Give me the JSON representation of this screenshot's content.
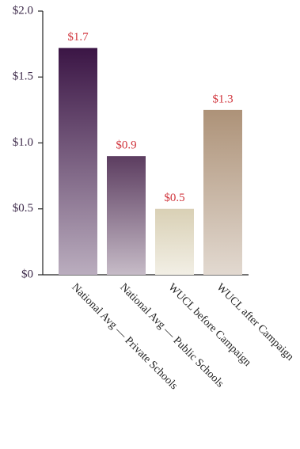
{
  "chart_data": {
    "type": "bar",
    "categories": [
      "National Avg — Private Schools",
      "National Avg — Public Schools",
      "WUCL before Campaign",
      "WUCL after Campaign"
    ],
    "values": [
      1.72,
      0.9,
      0.5,
      1.25
    ],
    "value_labels": [
      "$1.7",
      "$0.9",
      "$0.5",
      "$1.3"
    ],
    "colors": [
      "#3b1545",
      "#5c3d60",
      "#d9d0b5",
      "#ad9278"
    ],
    "ylim": [
      0,
      2.0
    ],
    "yticks": [
      {
        "value": 0,
        "label": "$0"
      },
      {
        "value": 0.5,
        "label": "$0.5"
      },
      {
        "value": 1.0,
        "label": "$1.0"
      },
      {
        "value": 1.5,
        "label": "$1.5"
      },
      {
        "value": 2.0,
        "label": "$2.0"
      }
    ]
  }
}
